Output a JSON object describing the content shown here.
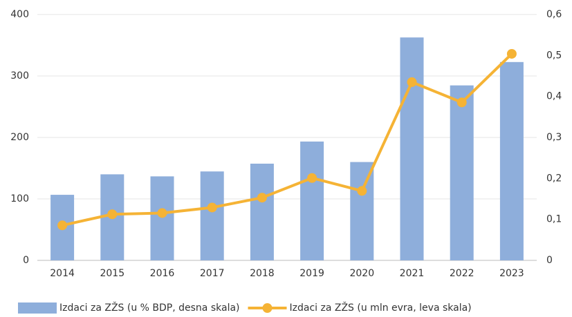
{
  "chart_data": {
    "type": "bar",
    "categories": [
      "2014",
      "2015",
      "2016",
      "2017",
      "2018",
      "2019",
      "2020",
      "2021",
      "2022",
      "2023"
    ],
    "series": [
      {
        "name": "Izdaci za ZŽS (u % BDP, desna skala)",
        "type": "bar",
        "axis": "y2",
        "color": "#8eaedb",
        "values": [
          0.16,
          0.21,
          0.205,
          0.217,
          0.236,
          0.29,
          0.24,
          0.544,
          0.427,
          0.484
        ]
      },
      {
        "name": "Izdaci za ZŽS (u mln evra, leva skala)",
        "type": "line",
        "axis": "y",
        "color": "#f5b335",
        "values": [
          57,
          75,
          77,
          86,
          102,
          134,
          113,
          290,
          257,
          336
        ]
      }
    ],
    "ylim": [
      0,
      400
    ],
    "yticks": [
      0,
      100,
      200,
      300,
      400
    ],
    "y2lim": [
      0,
      0.6
    ],
    "y2ticks": [
      0,
      {
        "value": 0.1,
        "label": "0,1"
      },
      {
        "value": 0.2,
        "label": "0,2"
      },
      {
        "value": 0.3,
        "label": "0,3"
      },
      {
        "value": 0.4,
        "label": "0,4"
      },
      {
        "value": 0.5,
        "label": "0,5"
      },
      {
        "value": 0.6,
        "label": "0,6"
      }
    ],
    "grid": true,
    "legend": "bottom"
  }
}
